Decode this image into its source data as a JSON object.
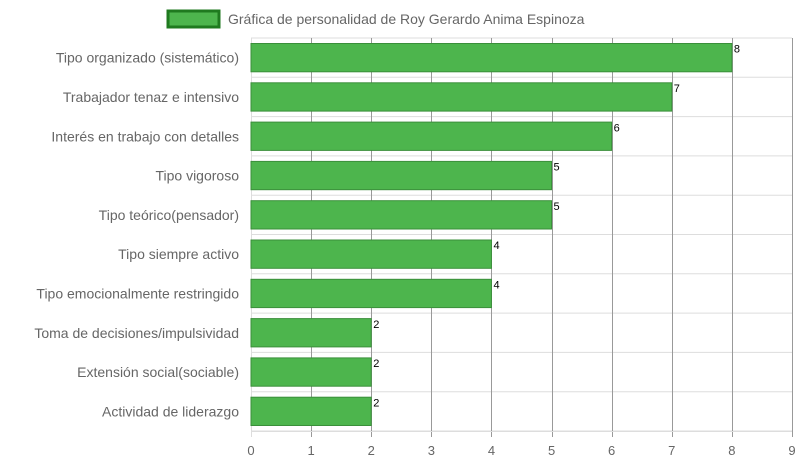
{
  "chart_data": {
    "type": "bar",
    "orientation": "horizontal",
    "legend": {
      "label": "Gráfica de personalidad de Roy Gerardo Anima Espinoza",
      "placement": "top-center"
    },
    "categories": [
      "Tipo organizado (sistemático)",
      "Trabajador tenaz e intensivo",
      "Interés en trabajo con detalles",
      "Tipo vigoroso",
      "Tipo teórico(pensador)",
      "Tipo siempre activo",
      "Tipo emocionalmente restringido",
      "Toma de decisiones/impulsividad",
      "Extensión social(sociable)",
      "Actividad de liderazgo"
    ],
    "values": [
      8,
      7,
      6,
      5,
      5,
      4,
      4,
      2,
      2,
      2
    ],
    "xlim": [
      0,
      9
    ],
    "xticks": [
      "0",
      "1",
      "2",
      "3",
      "4",
      "5",
      "6",
      "7",
      "8",
      "9"
    ],
    "grid": true,
    "data_labels": true,
    "colors": {
      "bar_fill": "#4db54d",
      "bar_stroke": "#3a8f3a",
      "legend_stroke": "#1f7a1f",
      "grid": "#dddddd",
      "grid_major": "#999999"
    }
  }
}
